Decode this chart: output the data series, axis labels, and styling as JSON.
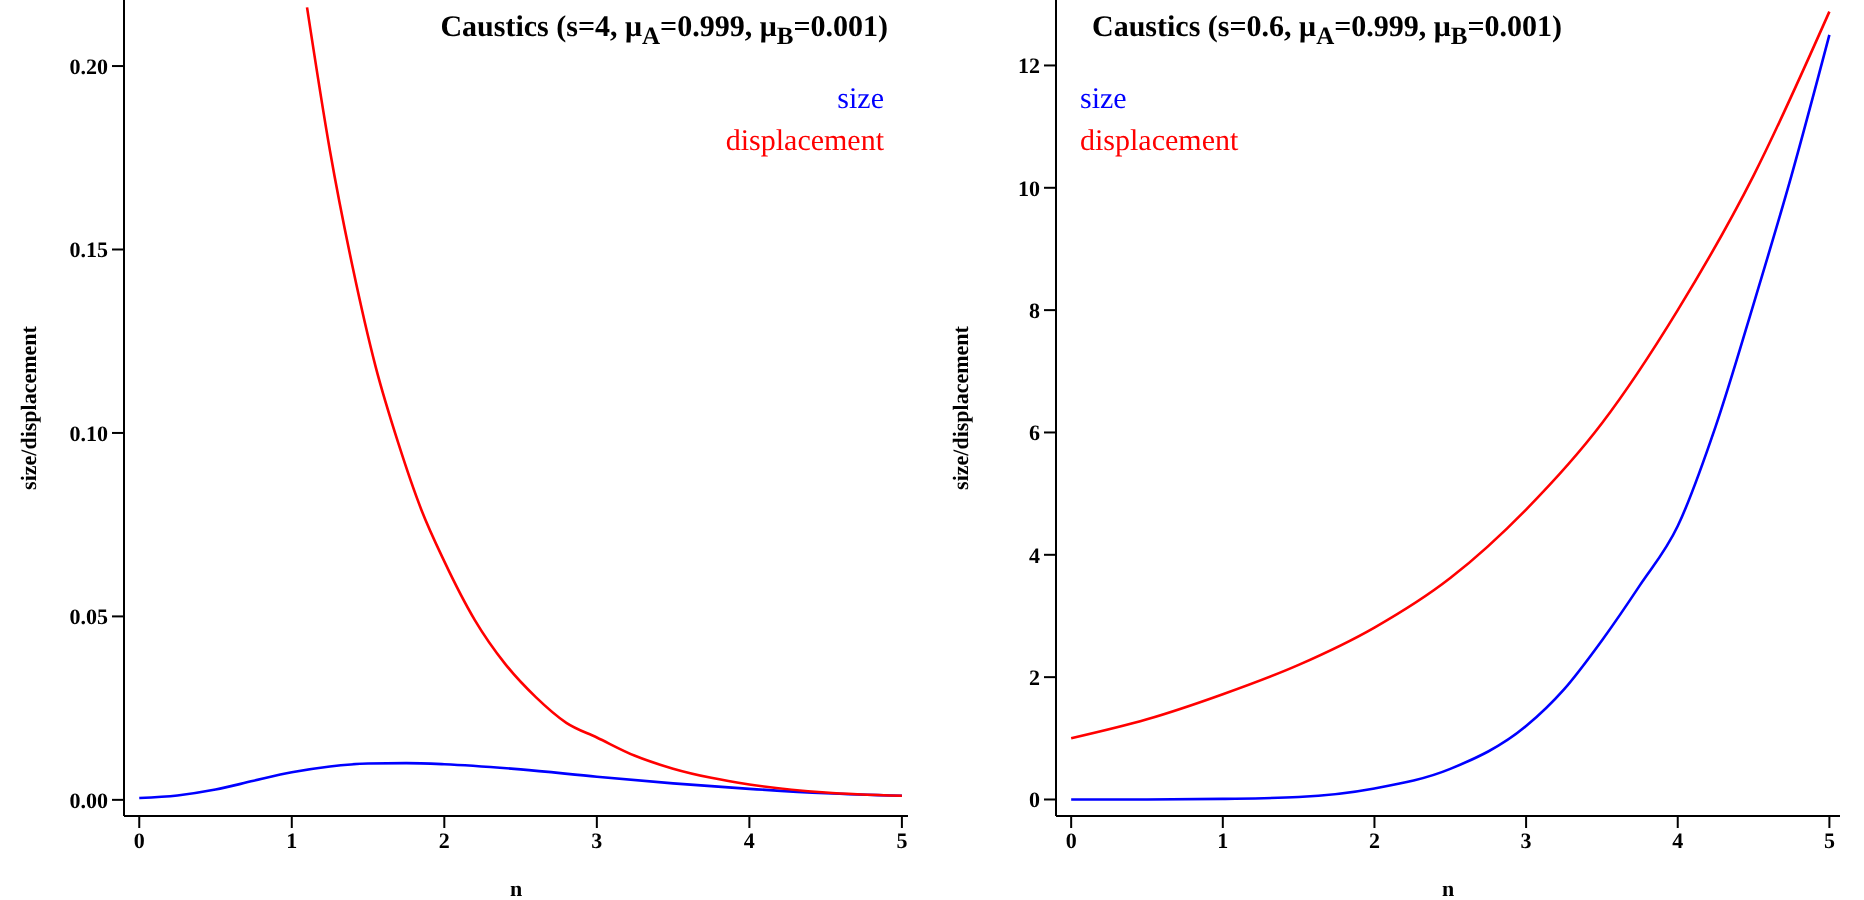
{
  "chart_data": [
    {
      "type": "line",
      "title": "Caustics  (s=4, μ$_{A}$=0.999, μ$_{B}$=0.001)",
      "xlabel": "n",
      "ylabel": "size/displacement",
      "xlim": [
        -0.1,
        5.04
      ],
      "ylim": [
        -0.0044,
        0.218
      ],
      "xticks": [
        0,
        1,
        2,
        3,
        4,
        5
      ],
      "yticks": [
        {
          "value": 0,
          "label": "0.00"
        },
        {
          "value": 0.05,
          "label": "0.05"
        },
        {
          "value": 0.1,
          "label": "0.10"
        },
        {
          "value": 0.15,
          "label": "0.15"
        },
        {
          "value": 0.2,
          "label": "0.20"
        }
      ],
      "legend": "top right",
      "series": [
        {
          "name": "size",
          "color": "#0000ff",
          "x": [
            0,
            0.25,
            0.5,
            0.75,
            1,
            1.25,
            1.5,
            1.75,
            2,
            2.5,
            3,
            3.5,
            4,
            4.5,
            5
          ],
          "values": [
            0.0005,
            0.0012,
            0.0028,
            0.0052,
            0.0075,
            0.0091,
            0.0099,
            0.01,
            0.0097,
            0.0083,
            0.0063,
            0.0045,
            0.003,
            0.0018,
            0.0011
          ]
        },
        {
          "name": "displacement",
          "color": "#ff0000",
          "x": [
            1.1,
            1.25,
            1.4,
            1.55,
            1.7,
            1.85,
            2.0,
            2.2,
            2.4,
            2.6,
            2.8,
            3.0,
            3.25,
            3.5,
            3.75,
            4.0,
            4.5,
            5.0
          ],
          "values": [
            0.216,
            0.177,
            0.145,
            0.118,
            0.097,
            0.079,
            0.065,
            0.049,
            0.037,
            0.028,
            0.021,
            0.017,
            0.012,
            0.0085,
            0.006,
            0.0042,
            0.002,
            0.0011
          ]
        }
      ]
    },
    {
      "type": "line",
      "title": "Caustics  (s=0.6, μ$_{A}$=0.999, μ$_{B}$=0.001)",
      "xlabel": "n",
      "ylabel": "size/displacement",
      "xlim": [
        -0.1,
        5.07
      ],
      "ylim": [
        -0.27,
        13.07
      ],
      "xticks": [
        0,
        1,
        2,
        3,
        4,
        5
      ],
      "yticks": [
        0,
        2,
        4,
        6,
        8,
        10,
        12
      ],
      "legend": "top left",
      "series": [
        {
          "name": "size",
          "color": "#0000ff",
          "x": [
            0,
            0.5,
            1,
            1.5,
            2,
            2.5,
            3,
            3.25,
            3.5,
            3.75,
            4,
            4.25,
            4.5,
            4.75,
            5
          ],
          "values": [
            0,
            0,
            0.01,
            0.04,
            0.18,
            0.5,
            1.2,
            1.8,
            2.6,
            3.5,
            4.47,
            6.1,
            8.1,
            10.2,
            12.5
          ]
        },
        {
          "name": "displacement",
          "color": "#ff0000",
          "x": [
            0,
            0.5,
            1,
            1.5,
            2,
            2.5,
            3,
            3.5,
            4,
            4.5,
            5
          ],
          "values": [
            1.0,
            1.31,
            1.72,
            2.2,
            2.81,
            3.62,
            4.74,
            6.15,
            8.0,
            10.2,
            12.88
          ]
        }
      ]
    }
  ]
}
